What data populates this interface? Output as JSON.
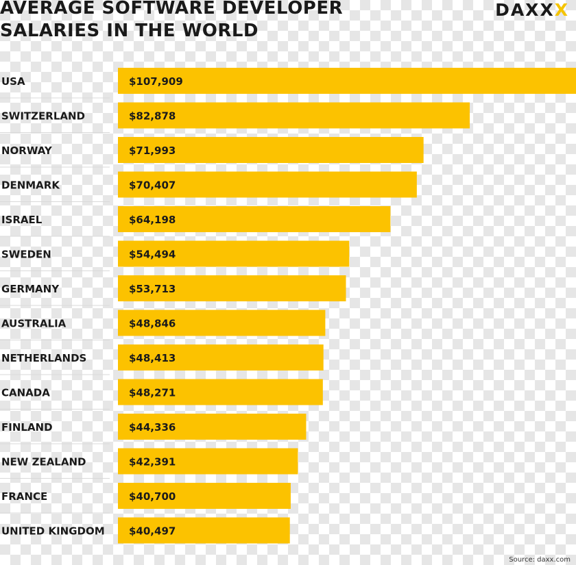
{
  "title_line1": "AVERAGE SOFTWARE DEVELOPER",
  "title_line2": "SALARIES IN THE WORLD",
  "logo_text": "DAXX",
  "logo_accent_text": "X",
  "source": "Source: daxx.com",
  "colors": {
    "bar": "#fcc200",
    "text": "#1a1a1a",
    "bar_label": "#1a1a1a",
    "divider": "#d9d9d9"
  },
  "chart_data": {
    "type": "bar",
    "orientation": "horizontal",
    "categories": [
      "USA",
      "SWITZERLAND",
      "NORWAY",
      "DENMARK",
      "ISRAEL",
      "SWEDEN",
      "GERMANY",
      "AUSTRALIA",
      "NETHERLANDS",
      "CANADA",
      "FINLAND",
      "NEW ZEALAND",
      "FRANCE",
      "UNITED KINGDOM"
    ],
    "values": [
      107909,
      82878,
      71993,
      70407,
      64198,
      54494,
      53713,
      48846,
      48413,
      48271,
      44336,
      42391,
      40700,
      40497
    ],
    "value_labels": [
      "$107,909",
      "$82,878",
      "$71,993",
      "$70,407",
      "$64,198",
      "$54,494",
      "$53,713",
      "$48,846",
      "$48,413",
      "$48,271",
      "$44,336",
      "$42,391",
      "$40,700",
      "$40,497"
    ],
    "title": "AVERAGE SOFTWARE DEVELOPER SALARIES IN THE WORLD",
    "xlim": [
      0,
      107909
    ]
  }
}
